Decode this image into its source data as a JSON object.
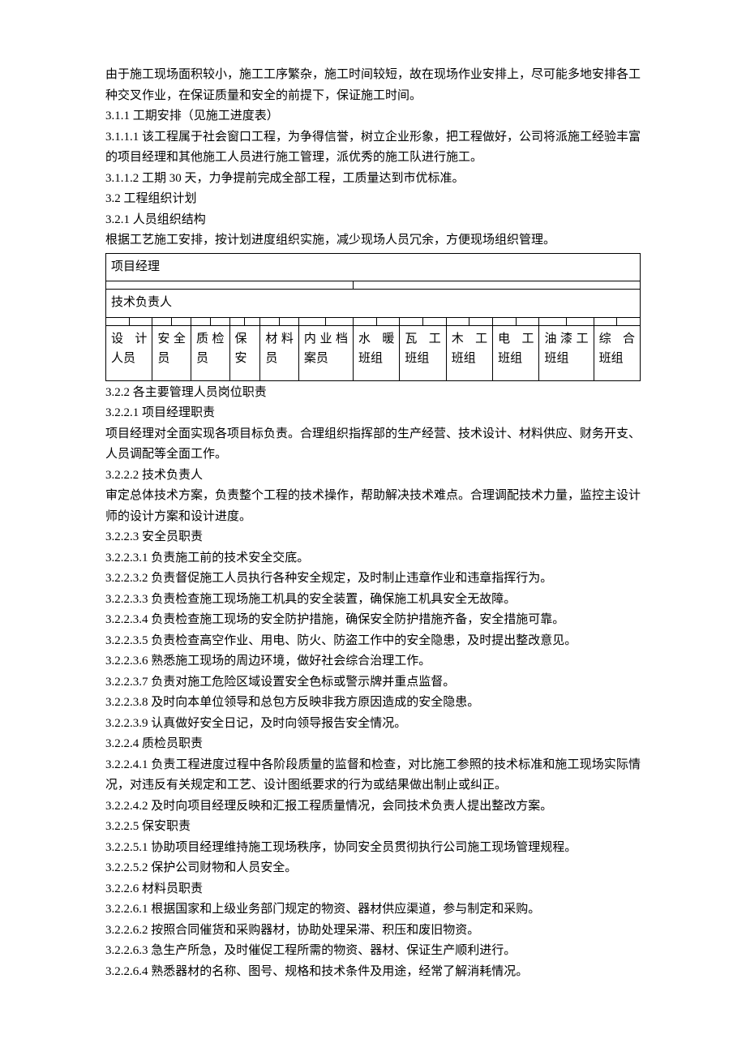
{
  "intro": [
    "由于施工现场面积较小，施工工序繁杂，施工时间较短，故在现场作业安排上，尽可能多地安排各工种交叉作业，在保证质量和安全的前提下，保证施工时间。",
    "3.1.1 工期安排（见施工进度表）",
    "3.1.1.1 该工程属于社会窗口工程，为争得信誉，树立企业形象，把工程做好，公司将派施工经验丰富的项目经理和其他施工人员进行施工管理，派优秀的施工队进行施工。",
    "3.1.1.2 工期 30 天，力争提前完成全部工程，工质量达到市优标准。",
    "3.2 工程组织计划",
    "3.2.1 人员组织结构",
    "根据工艺施工安排，按计划进度组织实施，减少现场人员冗余，方便现场组织管理。"
  ],
  "org": {
    "row1": "项目经理",
    "row3": "技术负责人",
    "row5": [
      "设计人员",
      "安全员",
      "质检员",
      "保安",
      "材料员",
      "内业档案员",
      "水暖班组",
      "瓦工班组",
      "木工班组",
      "电工班组",
      "油漆工班组",
      "综合班组"
    ]
  },
  "body": [
    "3.2.2 各主要管理人员岗位职责",
    "3.2.2.1 项目经理职责",
    "项目经理对全面实现各项目标负责。合理组织指挥部的生产经营、技术设计、材料供应、财务开支、人员调配等全面工作。",
    "3.2.2.2 技术负责人",
    "审定总体技术方案，负责整个工程的技术操作，帮助解决技术难点。合理调配技术力量，监控主设计师的设计方案和设计进度。",
    "3.2.2.3 安全员职责",
    "3.2.2.3.1 负责施工前的技术安全交底。",
    "3.2.2.3.2 负责督促施工人员执行各种安全规定，及时制止违章作业和违章指挥行为。",
    "3.2.2.3.3 负责检查施工现场施工机具的安全装置，确保施工机具安全无故障。",
    "3.2.2.3.4 负责检查施工现场的安全防护措施，确保安全防护措施齐备，安全措施可靠。",
    "3.2.2.3.5 负责检查高空作业、用电、防火、防盗工作中的安全隐患，及时提出整改意见。",
    "3.2.2.3.6 熟悉施工现场的周边环境，做好社会综合治理工作。",
    "3.2.2.3.7 负责对施工危险区域设置安全色标或警示牌并重点监督。",
    "3.2.2.3.8 及时向本单位领导和总包方反映非我方原因造成的安全隐患。",
    "3.2.2.3.9 认真做好安全日记，及时向领导报告安全情况。",
    "3.2.2.4 质检员职责",
    "3.2.2.4.1 负责工程进度过程中各阶段质量的监督和检查，对比施工参照的技术标准和施工现场实际情况，对违反有关规定和工艺、设计图纸要求的行为或结果做出制止或纠正。",
    "3.2.2.4.2 及时向项目经理反映和汇报工程质量情况，会同技术负责人提出整改方案。",
    "3.2.2.5 保安职责",
    "3.2.2.5.1 协助项目经理维持施工现场秩序，协同安全员贯彻执行公司施工现场管理规程。",
    "3.2.2.5.2 保护公司财物和人员安全。",
    "3.2.2.6 材料员职责",
    "3.2.2.6.1 根据国家和上级业务部门规定的物资、器材供应渠道，参与制定和采购。",
    "3.2.2.6.2 按照合同催货和采购器材，协助处理呆滞、积压和废旧物资。",
    "3.2.2.6.3 急生产所急，及时催促工程所需的物资、器材、保证生产顺利进行。",
    "3.2.2.6.4 熟悉器材的名称、图号、规格和技术条件及用途，经常了解消耗情况。"
  ]
}
